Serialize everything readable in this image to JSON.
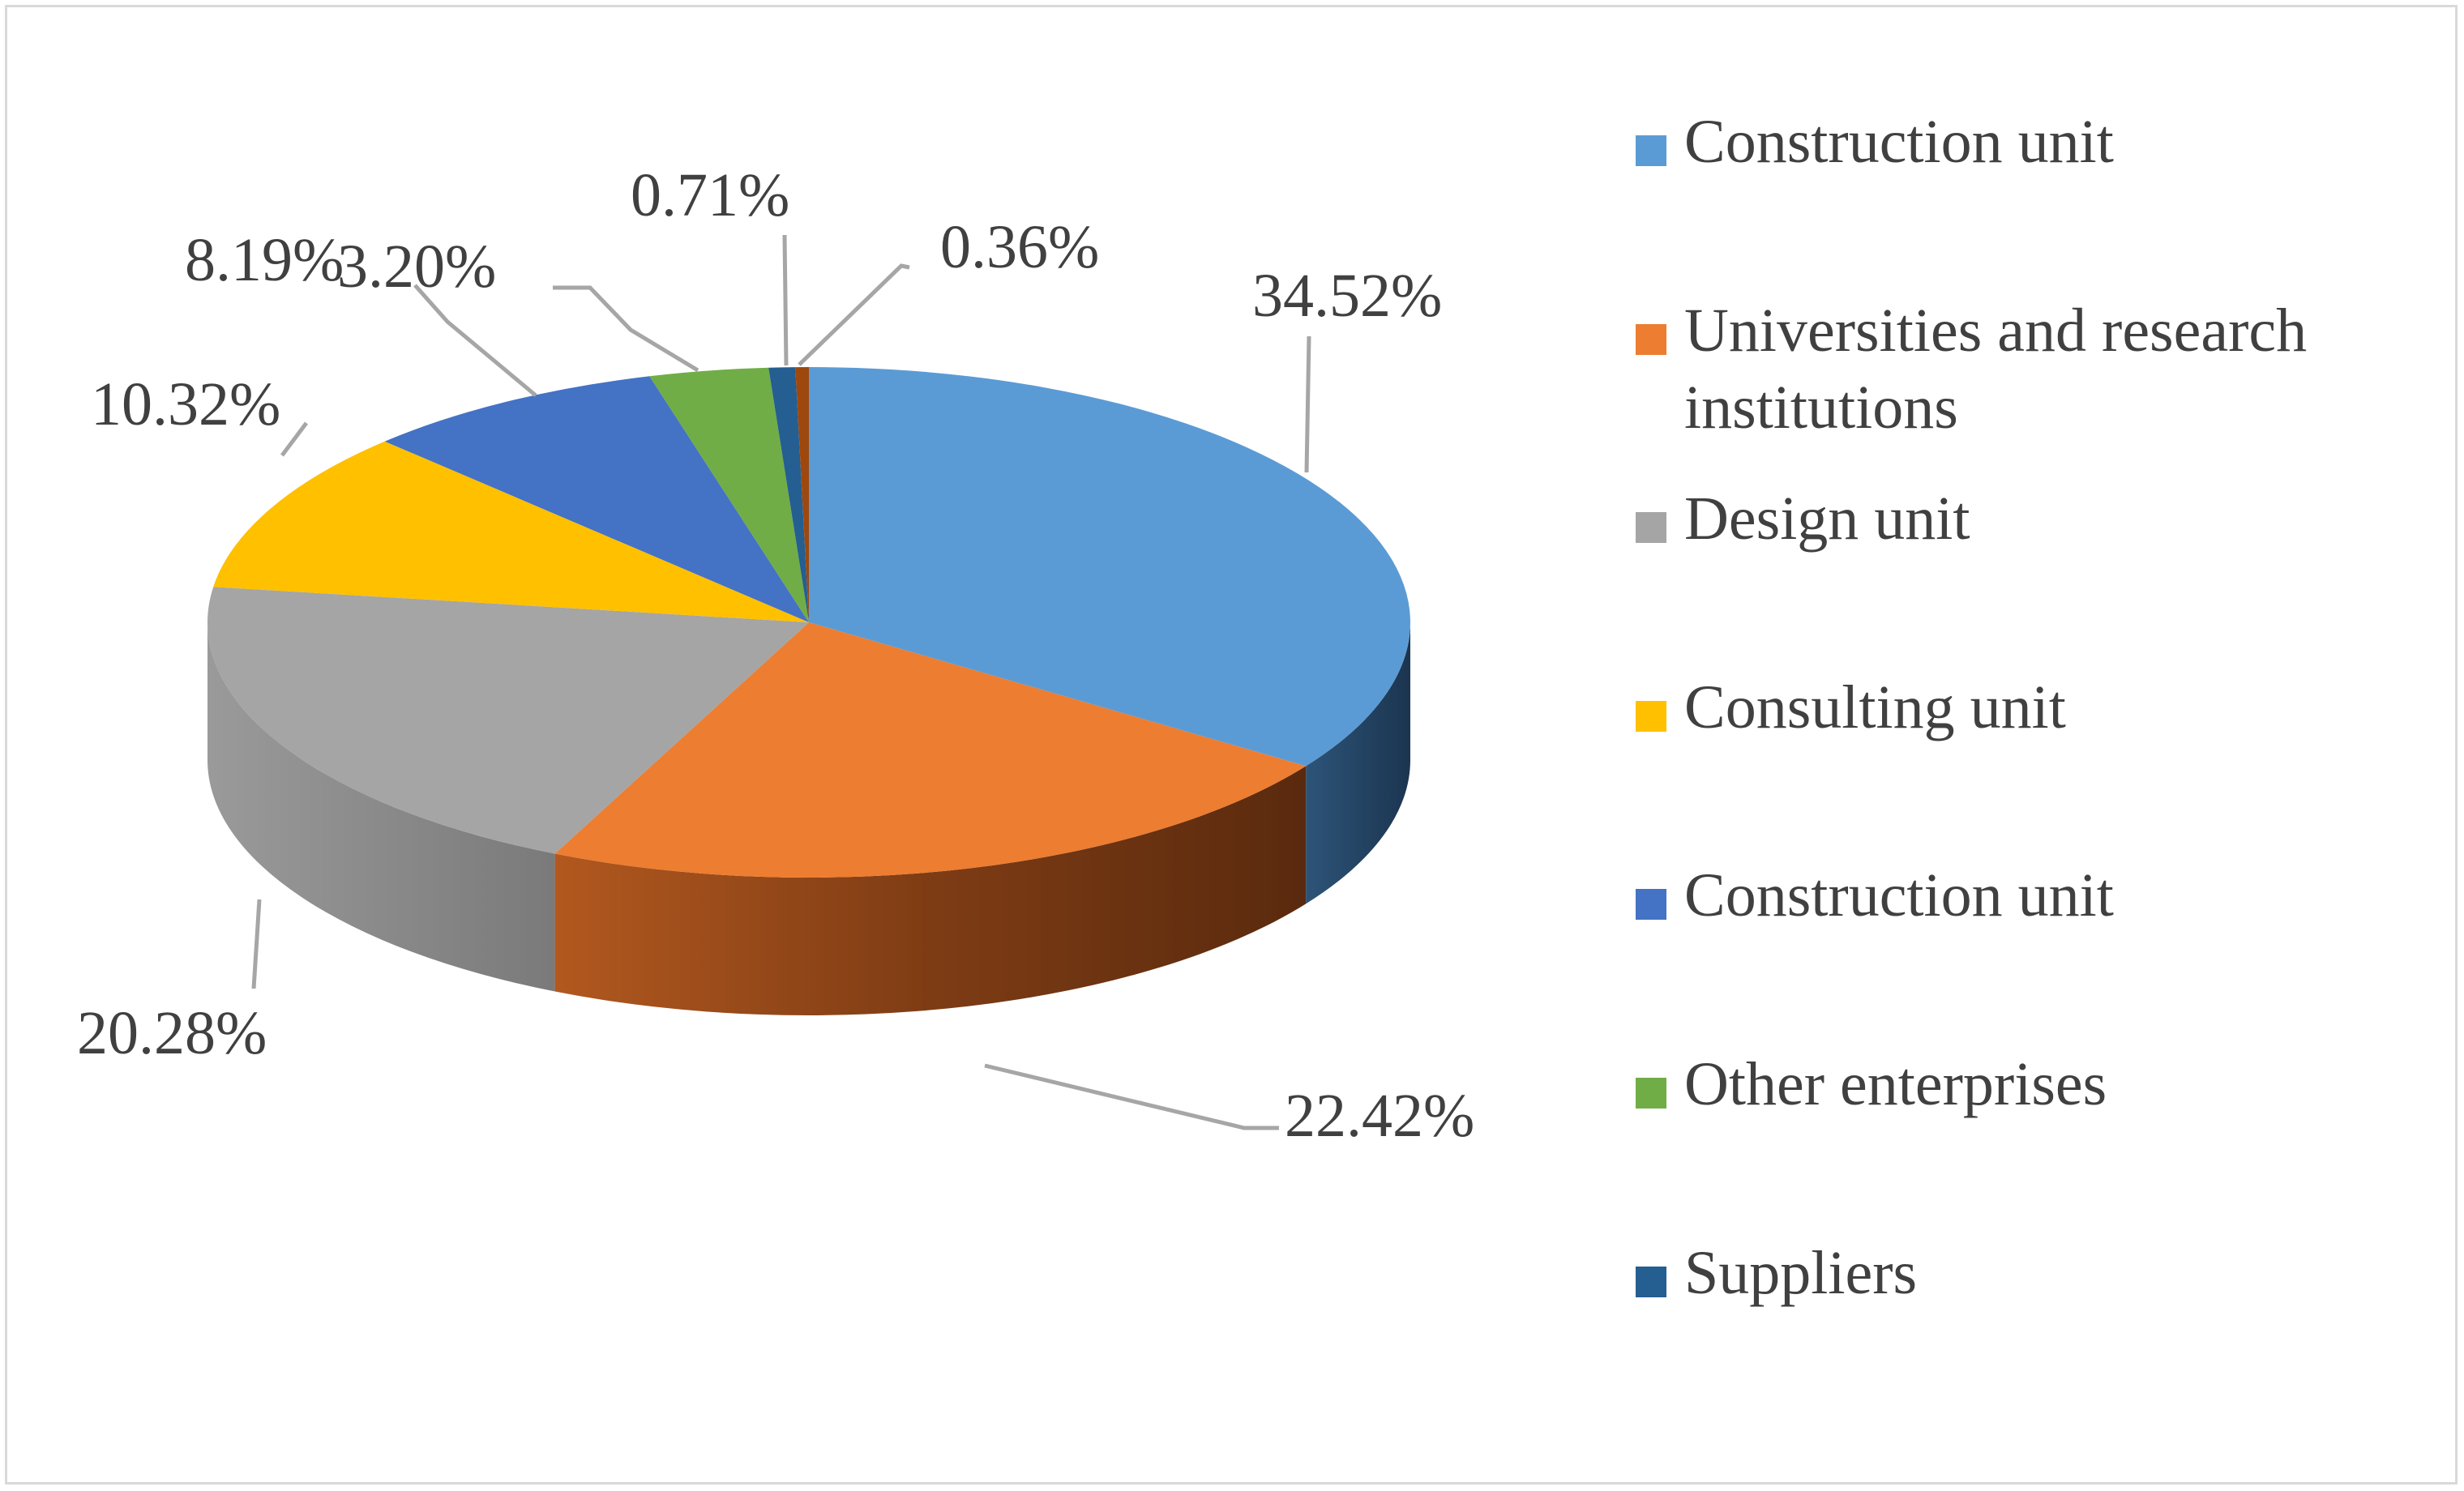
{
  "chart_data": {
    "type": "pie",
    "style": "3d",
    "slices": [
      {
        "label": "Construction unit",
        "value": 34.52,
        "display": "34.52%",
        "color": "#5b9bd5",
        "side_color": "#1f3a56",
        "legend_color": "#5b9bd5"
      },
      {
        "label": "Universities and research institutions",
        "value": 22.42,
        "display": "22.42%",
        "color": "#ed7d31",
        "side_color": "#7a3a12",
        "legend_color": "#ed7d31"
      },
      {
        "label": "Design unit",
        "value": 20.28,
        "display": "20.28%",
        "color": "#a5a5a5",
        "side_color": "#8f8f8f",
        "legend_color": "#a5a5a5"
      },
      {
        "label": "Consulting unit",
        "value": 10.32,
        "display": "10.32%",
        "color": "#ffc000",
        "side_color": "#b38600",
        "legend_color": "#ffc000"
      },
      {
        "label": "Construction unit",
        "value": 8.19,
        "display": "8.19%",
        "color": "#4472c4",
        "side_color": "#2a4a85",
        "legend_color": "#4472c4"
      },
      {
        "label": "Other enterprises",
        "value": 3.2,
        "display": "3.20%",
        "color": "#70ad47",
        "side_color": "#4a7a2c",
        "legend_color": "#70ad47"
      },
      {
        "label": "Suppliers",
        "value": 0.71,
        "display": "0.71%",
        "color": "#255e91",
        "side_color": "#163a5a",
        "legend_color": "#255e91"
      },
      {
        "label": "",
        "value": 0.36,
        "display": "0.36%",
        "color": "#9e480e",
        "side_color": "#5e2a08",
        "legend_color": "#9e480e"
      }
    ],
    "legend": [
      "Construction unit",
      "Universities and research institutions",
      "Design unit",
      "Consulting unit",
      "Construction unit",
      "Other enterprises",
      "Suppliers"
    ],
    "legend_position": "right"
  }
}
